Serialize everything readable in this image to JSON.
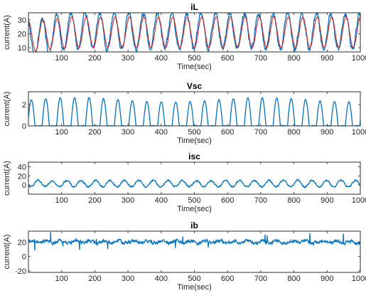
{
  "colors": {
    "series_blue": "#0072BD",
    "series_red": "#D62728",
    "axis": "#262626"
  },
  "chart_data": [
    {
      "type": "line",
      "title": "iL",
      "xlabel": "Time(sec)",
      "ylabel": "current(A)",
      "xlim": [
        0,
        1000
      ],
      "ylim": [
        7,
        35
      ],
      "x_ticks": [
        "100",
        "200",
        "300",
        "400",
        "500",
        "600",
        "700",
        "800",
        "900",
        "1000"
      ],
      "y_ticks": [
        "10",
        "20",
        "30"
      ],
      "grid": false,
      "series": [
        {
          "color": "#0072BD",
          "kind": "sine",
          "period": 43.5,
          "phase": 0.3,
          "mean": 20.5,
          "amplitude": 13,
          "noise": 2.2,
          "mean_start": 16,
          "mean_end": 22
        },
        {
          "color": "#D62728",
          "kind": "sine",
          "period": 43.5,
          "phase": 0.25,
          "mean": 20.5,
          "amplitude": 11,
          "noise": 0.4,
          "mean_start": 18,
          "mean_end": 21
        }
      ]
    },
    {
      "type": "line",
      "title": "Vsc",
      "xlabel": "Time(sec)",
      "ylabel": "current(A)",
      "xlim": [
        0,
        1000
      ],
      "ylim": [
        0,
        3.2
      ],
      "x_ticks": [
        "100",
        "200",
        "300",
        "400",
        "500",
        "600",
        "700",
        "800",
        "900",
        "1000"
      ],
      "y_ticks": [
        "0",
        "2"
      ],
      "grid": false,
      "series": [
        {
          "color": "#0072BD",
          "kind": "rectified",
          "period": 43.5,
          "phase": 0.05,
          "mean": 0,
          "amplitude": 2.65,
          "noise": 0.04
        }
      ]
    },
    {
      "type": "line",
      "title": "isc",
      "xlabel": "Time(sec)",
      "ylabel": "current(A)",
      "xlim": [
        0,
        1000
      ],
      "ylim": [
        -20,
        50
      ],
      "x_ticks": [
        "100",
        "200",
        "300",
        "400",
        "500",
        "600",
        "700",
        "800",
        "900",
        "1000"
      ],
      "y_ticks": [
        "0",
        "20",
        "40"
      ],
      "grid": false,
      "series": [
        {
          "color": "#0072BD",
          "kind": "sine",
          "period": 43.5,
          "phase": 0.6,
          "mean": 3,
          "amplitude": 7,
          "noise": 2.0
        }
      ]
    },
    {
      "type": "line",
      "title": "ib",
      "xlabel": "Time(sec)",
      "ylabel": "current(A)",
      "xlim": [
        0,
        1000
      ],
      "ylim": [
        -22,
        35
      ],
      "x_ticks": [
        "100",
        "200",
        "300",
        "400",
        "500",
        "600",
        "700",
        "800",
        "900",
        "1000"
      ],
      "y_ticks": [
        "-20",
        "0",
        "20"
      ],
      "grid": false,
      "series": [
        {
          "color": "#0072BD",
          "kind": "noise",
          "period": 43.5,
          "phase": 0,
          "mean": 20,
          "amplitude": 1.5,
          "noise": 2.5
        }
      ]
    }
  ]
}
